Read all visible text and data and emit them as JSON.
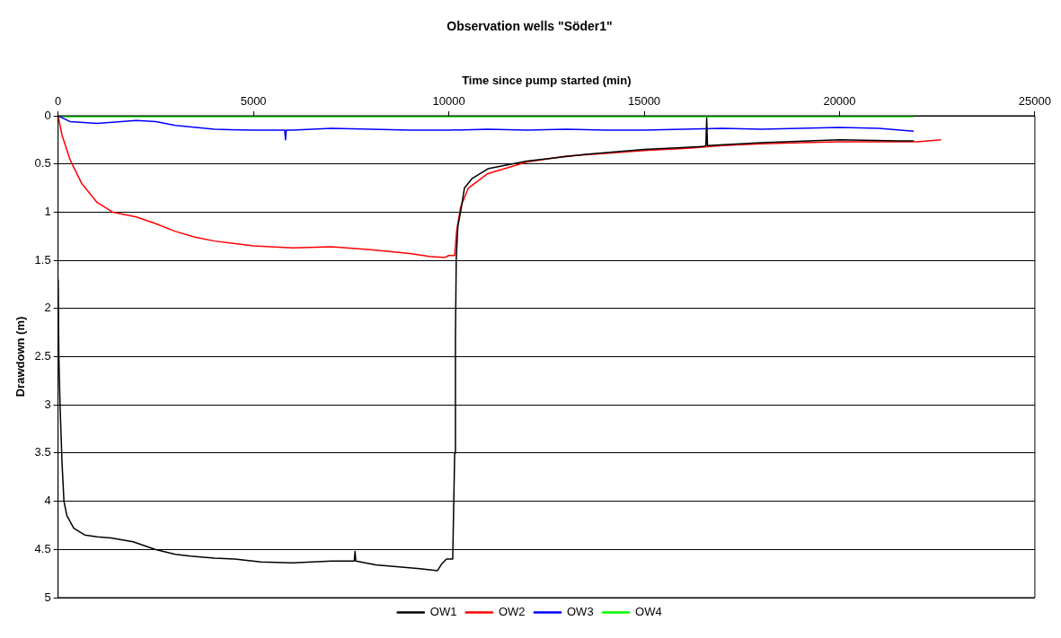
{
  "chart_data": {
    "type": "line",
    "title": "Observation wells \"Söder1\"",
    "xlabel": "Time since pump started (min)",
    "ylabel": "Drawdown (m)",
    "xlim": [
      0,
      25000
    ],
    "xticks": [
      0,
      5000,
      10000,
      15000,
      20000,
      25000
    ],
    "ylim": [
      5,
      0
    ],
    "yticks": [
      0,
      0.5,
      1,
      1.5,
      2,
      2.5,
      3,
      3.5,
      4,
      4.5,
      5
    ],
    "grid": "y",
    "legend": "bottom",
    "marker": "none",
    "line_style": "solid",
    "series": [
      {
        "name": "OW1",
        "color": "#000000",
        "x": [
          0,
          20,
          50,
          100,
          150,
          225,
          400,
          680,
          1000,
          1355,
          1920,
          2480,
          3000,
          3390,
          4000,
          4520,
          5190,
          6000,
          7000,
          7450,
          7580,
          7600,
          7620,
          8130,
          9260,
          9710,
          9820,
          9940,
          10100,
          10150,
          10170,
          10190,
          10230,
          10300,
          10400,
          10600,
          11000,
          12000,
          13500,
          15000,
          16500,
          16580,
          16600,
          16620,
          18000,
          20000,
          21500,
          21900
        ],
        "values": [
          1.7,
          2.5,
          3.0,
          3.6,
          4.0,
          4.15,
          4.28,
          4.35,
          4.37,
          4.38,
          4.42,
          4.5,
          4.55,
          4.57,
          4.59,
          4.6,
          4.63,
          4.64,
          4.62,
          4.62,
          4.62,
          4.52,
          4.62,
          4.66,
          4.7,
          4.72,
          4.65,
          4.6,
          4.6,
          3.5,
          2.3,
          1.5,
          1.15,
          1.0,
          0.75,
          0.65,
          0.55,
          0.47,
          0.4,
          0.35,
          0.32,
          0.31,
          0.02,
          0.31,
          0.28,
          0.25,
          0.26,
          0.26
        ]
      },
      {
        "name": "OW2",
        "color": "#ff0000",
        "x": [
          0,
          100,
          300,
          600,
          1000,
          1400,
          2000,
          2500,
          3000,
          3500,
          4000,
          5000,
          6000,
          7000,
          8000,
          9000,
          9500,
          9900,
          10000,
          10150,
          10200,
          10300,
          10500,
          11000,
          12000,
          13000,
          14000,
          15000,
          16000,
          17000,
          18000,
          19000,
          20000,
          21000,
          22000,
          22600
        ],
        "values": [
          0,
          0.2,
          0.45,
          0.7,
          0.9,
          1.0,
          1.05,
          1.12,
          1.2,
          1.26,
          1.3,
          1.35,
          1.37,
          1.36,
          1.39,
          1.43,
          1.46,
          1.47,
          1.45,
          1.45,
          1.2,
          0.95,
          0.75,
          0.6,
          0.48,
          0.42,
          0.39,
          0.36,
          0.34,
          0.31,
          0.29,
          0.28,
          0.27,
          0.27,
          0.27,
          0.25
        ]
      },
      {
        "name": "OW3",
        "color": "#0000ff",
        "x": [
          0,
          300,
          1000,
          2000,
          2500,
          3000,
          4000,
          5000,
          5800,
          5820,
          5840,
          6000,
          7000,
          8000,
          9000,
          10000,
          11000,
          12000,
          13000,
          14000,
          15000,
          16000,
          17000,
          18000,
          19000,
          20000,
          21000,
          21900
        ],
        "values": [
          0,
          0.06,
          0.08,
          0.05,
          0.06,
          0.1,
          0.14,
          0.15,
          0.15,
          0.25,
          0.15,
          0.15,
          0.13,
          0.14,
          0.15,
          0.15,
          0.14,
          0.15,
          0.14,
          0.15,
          0.15,
          0.14,
          0.13,
          0.14,
          0.13,
          0.12,
          0.13,
          0.16
        ]
      },
      {
        "name": "OW4",
        "color": "#00ff00",
        "x": [
          0,
          5000,
          10000,
          15000,
          20000,
          21900
        ],
        "values": [
          0.01,
          0.01,
          0.01,
          0.01,
          0.01,
          0.01
        ]
      }
    ]
  }
}
